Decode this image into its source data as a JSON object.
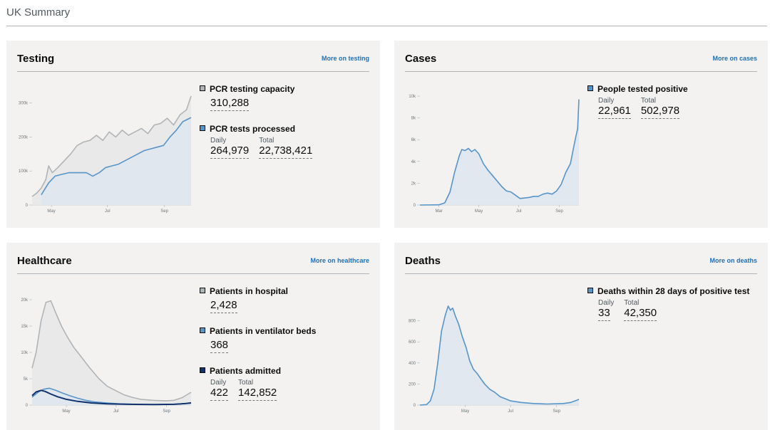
{
  "page": {
    "title": "UK Summary"
  },
  "colors": {
    "background": "#ffffff",
    "card": "#f3f2f1",
    "link": "#1d70b8",
    "grey_line": "#b1b4b6",
    "blue_line": "#5694ca",
    "navy_line": "#12326e",
    "blue_fill": "#dee6f0",
    "grey_fill": "#e8e8e8"
  },
  "cards": {
    "testing": {
      "title": "Testing",
      "link": "More on testing",
      "metrics": [
        {
          "name": "PCR testing capacity",
          "swatch": "#b1b4b6",
          "values": [
            {
              "label": "",
              "value": "310,288"
            }
          ]
        },
        {
          "name": "PCR tests processed",
          "swatch": "#5694ca",
          "values": [
            {
              "label": "Daily",
              "value": "264,979"
            },
            {
              "label": "Total",
              "value": "22,738,421"
            }
          ]
        }
      ]
    },
    "cases": {
      "title": "Cases",
      "link": "More on cases",
      "metrics": [
        {
          "name": "People tested positive",
          "swatch": "#5694ca",
          "values": [
            {
              "label": "Daily",
              "value": "22,961"
            },
            {
              "label": "Total",
              "value": "502,978"
            }
          ]
        }
      ]
    },
    "healthcare": {
      "title": "Healthcare",
      "link": "More on healthcare",
      "metrics": [
        {
          "name": "Patients in hospital",
          "swatch": "#b1b4b6",
          "values": [
            {
              "label": "",
              "value": "2,428"
            }
          ]
        },
        {
          "name": "Patients in ventilator beds",
          "swatch": "#5694ca",
          "values": [
            {
              "label": "",
              "value": "368"
            }
          ]
        },
        {
          "name": "Patients admitted",
          "swatch": "#12326e",
          "values": [
            {
              "label": "Daily",
              "value": "422"
            },
            {
              "label": "Total",
              "value": "142,852"
            }
          ]
        }
      ]
    },
    "deaths": {
      "title": "Deaths",
      "link": "More on deaths",
      "metrics": [
        {
          "name": "Deaths within 28 days of positive test",
          "swatch": "#5694ca",
          "values": [
            {
              "label": "Daily",
              "value": "33"
            },
            {
              "label": "Total",
              "value": "42,350"
            }
          ]
        }
      ]
    }
  },
  "chart_data": [
    {
      "id": "testing",
      "type": "area",
      "x_ticks": [
        "May",
        "Jul",
        "Sep"
      ],
      "y_ticks": [
        "0",
        "100k",
        "200k",
        "300k"
      ],
      "ylim": [
        0,
        320000
      ],
      "x_domain": [
        "2020-04-10",
        "2020-09-30"
      ],
      "x_tick_dates": [
        "2020-05-01",
        "2020-07-01",
        "2020-09-01"
      ],
      "series": [
        {
          "name": "PCR testing capacity",
          "color": "#b1b4b6",
          "fill": true,
          "points": [
            [
              "2020-04-10",
              25000
            ],
            [
              "2020-04-15",
              35000
            ],
            [
              "2020-04-20",
              50000
            ],
            [
              "2020-04-25",
              75000
            ],
            [
              "2020-04-28",
              115000
            ],
            [
              "2020-05-02",
              95000
            ],
            [
              "2020-05-08",
              110000
            ],
            [
              "2020-05-15",
              130000
            ],
            [
              "2020-05-22",
              150000
            ],
            [
              "2020-05-29",
              175000
            ],
            [
              "2020-06-05",
              185000
            ],
            [
              "2020-06-12",
              190000
            ],
            [
              "2020-06-19",
              205000
            ],
            [
              "2020-06-26",
              190000
            ],
            [
              "2020-07-03",
              215000
            ],
            [
              "2020-07-10",
              200000
            ],
            [
              "2020-07-17",
              220000
            ],
            [
              "2020-07-24",
              205000
            ],
            [
              "2020-07-31",
              215000
            ],
            [
              "2020-08-07",
              225000
            ],
            [
              "2020-08-14",
              210000
            ],
            [
              "2020-08-21",
              235000
            ],
            [
              "2020-08-28",
              240000
            ],
            [
              "2020-09-04",
              255000
            ],
            [
              "2020-09-11",
              235000
            ],
            [
              "2020-09-18",
              265000
            ],
            [
              "2020-09-25",
              280000
            ],
            [
              "2020-09-30",
              320000
            ]
          ]
        },
        {
          "name": "PCR tests processed",
          "color": "#5694ca",
          "fill": true,
          "points": [
            [
              "2020-04-20",
              30000
            ],
            [
              "2020-04-28",
              65000
            ],
            [
              "2020-05-05",
              85000
            ],
            [
              "2020-05-12",
              90000
            ],
            [
              "2020-05-20",
              95000
            ],
            [
              "2020-05-30",
              95000
            ],
            [
              "2020-06-08",
              95000
            ],
            [
              "2020-06-15",
              85000
            ],
            [
              "2020-06-22",
              95000
            ],
            [
              "2020-06-29",
              110000
            ],
            [
              "2020-07-06",
              115000
            ],
            [
              "2020-07-13",
              120000
            ],
            [
              "2020-07-20",
              130000
            ],
            [
              "2020-07-27",
              140000
            ],
            [
              "2020-08-03",
              150000
            ],
            [
              "2020-08-10",
              160000
            ],
            [
              "2020-08-17",
              165000
            ],
            [
              "2020-08-24",
              170000
            ],
            [
              "2020-08-31",
              175000
            ],
            [
              "2020-09-07",
              200000
            ],
            [
              "2020-09-14",
              220000
            ],
            [
              "2020-09-21",
              245000
            ],
            [
              "2020-09-30",
              257000
            ]
          ]
        }
      ]
    },
    {
      "id": "cases",
      "type": "area",
      "x_ticks": [
        "Mar",
        "May",
        "Jul",
        "Sep"
      ],
      "y_ticks": [
        "0",
        "2k",
        "4k",
        "6k",
        "8k",
        "10k"
      ],
      "ylim": [
        0,
        10000
      ],
      "x_domain": [
        "2020-02-01",
        "2020-10-01"
      ],
      "x_tick_dates": [
        "2020-03-01",
        "2020-05-01",
        "2020-07-01",
        "2020-09-01"
      ],
      "series": [
        {
          "name": "People tested positive",
          "color": "#5694ca",
          "fill": true,
          "points": [
            [
              "2020-02-01",
              0
            ],
            [
              "2020-03-01",
              20
            ],
            [
              "2020-03-10",
              200
            ],
            [
              "2020-03-18",
              1200
            ],
            [
              "2020-03-25",
              3000
            ],
            [
              "2020-04-01",
              4500
            ],
            [
              "2020-04-05",
              5100
            ],
            [
              "2020-04-10",
              5000
            ],
            [
              "2020-04-15",
              5200
            ],
            [
              "2020-04-20",
              4900
            ],
            [
              "2020-04-25",
              5100
            ],
            [
              "2020-05-01",
              4700
            ],
            [
              "2020-05-08",
              3800
            ],
            [
              "2020-05-15",
              3200
            ],
            [
              "2020-05-22",
              2700
            ],
            [
              "2020-05-29",
              2200
            ],
            [
              "2020-06-05",
              1700
            ],
            [
              "2020-06-12",
              1300
            ],
            [
              "2020-06-19",
              1200
            ],
            [
              "2020-06-26",
              900
            ],
            [
              "2020-07-03",
              600
            ],
            [
              "2020-07-10",
              650
            ],
            [
              "2020-07-17",
              700
            ],
            [
              "2020-07-24",
              800
            ],
            [
              "2020-07-31",
              800
            ],
            [
              "2020-08-07",
              1000
            ],
            [
              "2020-08-14",
              1100
            ],
            [
              "2020-08-21",
              1000
            ],
            [
              "2020-08-28",
              1300
            ],
            [
              "2020-09-04",
              1900
            ],
            [
              "2020-09-11",
              3000
            ],
            [
              "2020-09-18",
              3800
            ],
            [
              "2020-09-22",
              5000
            ],
            [
              "2020-09-26",
              6200
            ],
            [
              "2020-09-29",
              7000
            ],
            [
              "2020-10-01",
              9700
            ]
          ]
        }
      ]
    },
    {
      "id": "healthcare",
      "type": "area",
      "x_ticks": [
        "May",
        "Jul",
        "Sep"
      ],
      "y_ticks": [
        "0",
        "5k",
        "10k",
        "15k",
        "20k"
      ],
      "ylim": [
        0,
        20000
      ],
      "x_domain": [
        "2020-03-20",
        "2020-10-01"
      ],
      "x_tick_dates": [
        "2020-05-01",
        "2020-07-01",
        "2020-09-01"
      ],
      "series": [
        {
          "name": "Patients in hospital",
          "color": "#b1b4b6",
          "fill": true,
          "points": [
            [
              "2020-03-20",
              7000
            ],
            [
              "2020-03-25",
              10000
            ],
            [
              "2020-03-31",
              16000
            ],
            [
              "2020-04-06",
              19500
            ],
            [
              "2020-04-12",
              19800
            ],
            [
              "2020-04-18",
              17500
            ],
            [
              "2020-04-25",
              15000
            ],
            [
              "2020-05-02",
              13000
            ],
            [
              "2020-05-10",
              11000
            ],
            [
              "2020-05-20",
              9000
            ],
            [
              "2020-05-30",
              7000
            ],
            [
              "2020-06-10",
              5000
            ],
            [
              "2020-06-20",
              3600
            ],
            [
              "2020-06-30",
              2800
            ],
            [
              "2020-07-10",
              2000
            ],
            [
              "2020-07-20",
              1500
            ],
            [
              "2020-07-31",
              1100
            ],
            [
              "2020-08-15",
              900
            ],
            [
              "2020-08-31",
              800
            ],
            [
              "2020-09-10",
              900
            ],
            [
              "2020-09-20",
              1400
            ],
            [
              "2020-10-01",
              2428
            ]
          ]
        },
        {
          "name": "Patients in ventilator beds",
          "color": "#5694ca",
          "fill": true,
          "points": [
            [
              "2020-03-20",
              1500
            ],
            [
              "2020-03-28",
              2500
            ],
            [
              "2020-04-03",
              3000
            ],
            [
              "2020-04-10",
              3200
            ],
            [
              "2020-04-18",
              2800
            ],
            [
              "2020-04-26",
              2300
            ],
            [
              "2020-05-05",
              1800
            ],
            [
              "2020-05-15",
              1300
            ],
            [
              "2020-05-25",
              900
            ],
            [
              "2020-06-05",
              600
            ],
            [
              "2020-06-20",
              400
            ],
            [
              "2020-07-05",
              250
            ],
            [
              "2020-07-25",
              150
            ],
            [
              "2020-08-20",
              100
            ],
            [
              "2020-09-10",
              150
            ],
            [
              "2020-10-01",
              368
            ]
          ]
        },
        {
          "name": "Patients admitted",
          "color": "#12326e",
          "fill": false,
          "points": [
            [
              "2020-03-20",
              1800
            ],
            [
              "2020-03-25",
              2500
            ],
            [
              "2020-03-31",
              2800
            ],
            [
              "2020-04-05",
              2600
            ],
            [
              "2020-04-12",
              2100
            ],
            [
              "2020-04-20",
              1600
            ],
            [
              "2020-05-01",
              1100
            ],
            [
              "2020-05-15",
              700
            ],
            [
              "2020-06-01",
              400
            ],
            [
              "2020-06-20",
              250
            ],
            [
              "2020-07-15",
              150
            ],
            [
              "2020-08-15",
              100
            ],
            [
              "2020-09-10",
              150
            ],
            [
              "2020-09-25",
              300
            ],
            [
              "2020-10-01",
              422
            ]
          ]
        }
      ]
    },
    {
      "id": "deaths",
      "type": "area",
      "x_ticks": [
        "May",
        "Jul",
        "Sep"
      ],
      "y_ticks": [
        "0",
        "200",
        "400",
        "600",
        "800"
      ],
      "ylim": [
        0,
        1000
      ],
      "x_domain": [
        "2020-03-01",
        "2020-10-01"
      ],
      "x_tick_dates": [
        "2020-05-01",
        "2020-07-01",
        "2020-09-01"
      ],
      "series": [
        {
          "name": "Deaths within 28 days of positive test",
          "color": "#5694ca",
          "fill": true,
          "points": [
            [
              "2020-03-01",
              0
            ],
            [
              "2020-03-10",
              5
            ],
            [
              "2020-03-15",
              40
            ],
            [
              "2020-03-20",
              150
            ],
            [
              "2020-03-25",
              400
            ],
            [
              "2020-03-30",
              700
            ],
            [
              "2020-04-04",
              850
            ],
            [
              "2020-04-08",
              940
            ],
            [
              "2020-04-11",
              900
            ],
            [
              "2020-04-14",
              920
            ],
            [
              "2020-04-18",
              840
            ],
            [
              "2020-04-22",
              770
            ],
            [
              "2020-04-27",
              650
            ],
            [
              "2020-05-02",
              550
            ],
            [
              "2020-05-07",
              420
            ],
            [
              "2020-05-12",
              340
            ],
            [
              "2020-05-17",
              300
            ],
            [
              "2020-05-22",
              250
            ],
            [
              "2020-05-27",
              200
            ],
            [
              "2020-06-03",
              150
            ],
            [
              "2020-06-10",
              120
            ],
            [
              "2020-06-17",
              80
            ],
            [
              "2020-06-24",
              60
            ],
            [
              "2020-07-01",
              40
            ],
            [
              "2020-07-15",
              25
            ],
            [
              "2020-08-01",
              15
            ],
            [
              "2020-08-20",
              10
            ],
            [
              "2020-09-10",
              15
            ],
            [
              "2020-09-20",
              25
            ],
            [
              "2020-09-28",
              45
            ],
            [
              "2020-10-01",
              55
            ]
          ]
        }
      ]
    }
  ]
}
